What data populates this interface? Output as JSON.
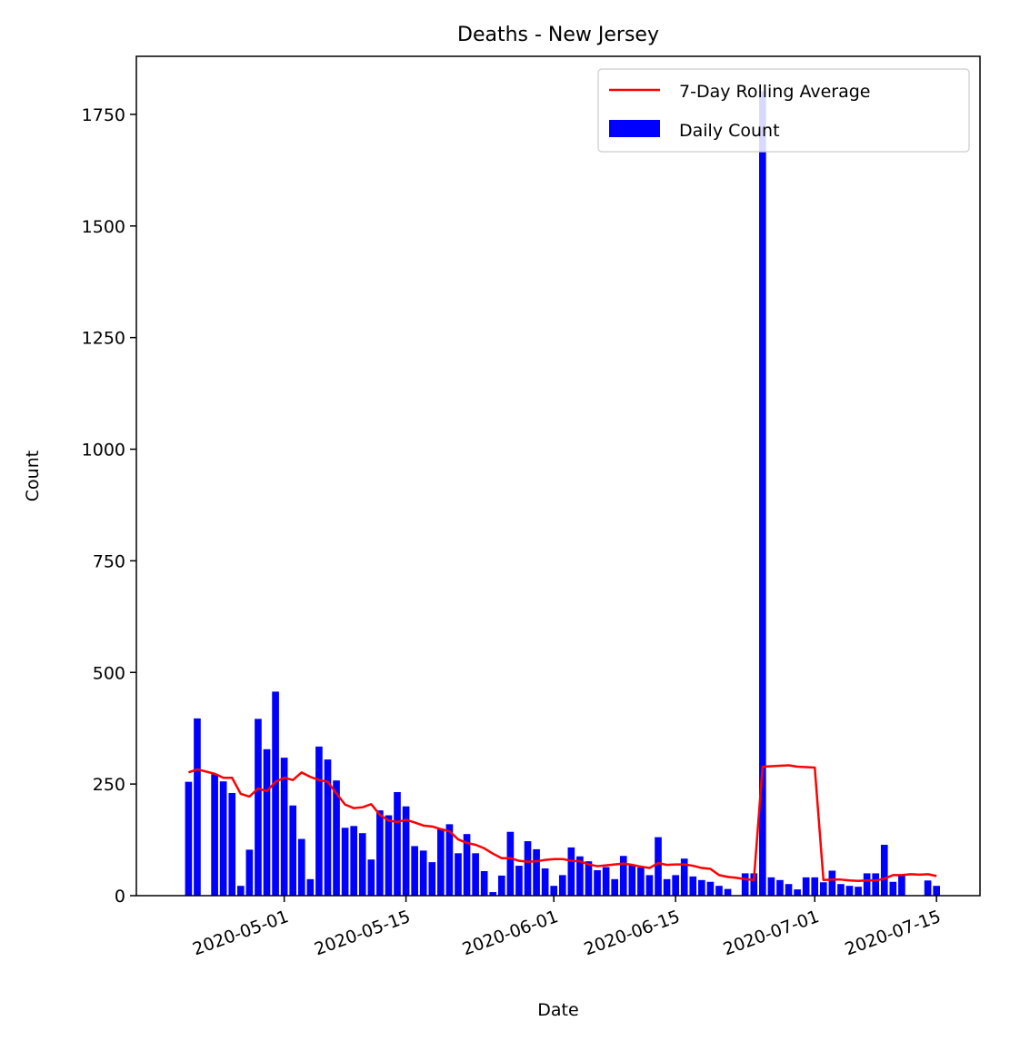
{
  "chart_data": {
    "type": "bar",
    "title": "Deaths - New Jersey",
    "xlabel": "Date",
    "ylabel": "Count",
    "ylim": [
      0,
      1880
    ],
    "xlim": [
      "2020-04-14",
      "2020-07-20"
    ],
    "yticks": [
      0,
      250,
      500,
      750,
      1000,
      1250,
      1500,
      1750
    ],
    "xticks": [
      "2020-05-01",
      "2020-05-15",
      "2020-06-01",
      "2020-06-15",
      "2020-07-01",
      "2020-07-15"
    ],
    "xtick_rotation_deg": 20,
    "legend_position": "top-right",
    "x": [
      "2020-04-20",
      "2020-04-21",
      "2020-04-22",
      "2020-04-23",
      "2020-04-24",
      "2020-04-25",
      "2020-04-26",
      "2020-04-27",
      "2020-04-28",
      "2020-04-29",
      "2020-04-30",
      "2020-05-01",
      "2020-05-02",
      "2020-05-03",
      "2020-05-04",
      "2020-05-05",
      "2020-05-06",
      "2020-05-07",
      "2020-05-08",
      "2020-05-09",
      "2020-05-10",
      "2020-05-11",
      "2020-05-12",
      "2020-05-13",
      "2020-05-14",
      "2020-05-15",
      "2020-05-16",
      "2020-05-17",
      "2020-05-18",
      "2020-05-19",
      "2020-05-20",
      "2020-05-21",
      "2020-05-22",
      "2020-05-23",
      "2020-05-24",
      "2020-05-25",
      "2020-05-26",
      "2020-05-27",
      "2020-05-28",
      "2020-05-29",
      "2020-05-30",
      "2020-05-31",
      "2020-06-01",
      "2020-06-02",
      "2020-06-03",
      "2020-06-04",
      "2020-06-05",
      "2020-06-06",
      "2020-06-07",
      "2020-06-08",
      "2020-06-09",
      "2020-06-10",
      "2020-06-11",
      "2020-06-12",
      "2020-06-13",
      "2020-06-14",
      "2020-06-15",
      "2020-06-16",
      "2020-06-17",
      "2020-06-18",
      "2020-06-19",
      "2020-06-20",
      "2020-06-21",
      "2020-06-22",
      "2020-06-23",
      "2020-06-24",
      "2020-06-25",
      "2020-06-26",
      "2020-06-27",
      "2020-06-28",
      "2020-06-29",
      "2020-06-30",
      "2020-07-01",
      "2020-07-02",
      "2020-07-03",
      "2020-07-04",
      "2020-07-05",
      "2020-07-06",
      "2020-07-07",
      "2020-07-08",
      "2020-07-09",
      "2020-07-10",
      "2020-07-11",
      "2020-07-12",
      "2020-07-13",
      "2020-07-14",
      "2020-07-15"
    ],
    "series": [
      {
        "name": "Daily Count",
        "type": "bar",
        "color": "#0000ff",
        "values": [
          255,
          397,
          null,
          272,
          256,
          230,
          22,
          103,
          396,
          328,
          457,
          309,
          202,
          127,
          37,
          334,
          305,
          258,
          152,
          156,
          140,
          81,
          191,
          180,
          232,
          200,
          111,
          101,
          75,
          150,
          160,
          95,
          138,
          95,
          55,
          8,
          45,
          143,
          67,
          122,
          104,
          61,
          22,
          46,
          108,
          88,
          77,
          57,
          64,
          37,
          89,
          69,
          63,
          46,
          131,
          37,
          46,
          83,
          43,
          35,
          31,
          22,
          15,
          null,
          50,
          50,
          1802,
          41,
          35,
          26,
          14,
          41,
          41,
          30,
          56,
          26,
          22,
          20,
          50,
          50,
          114,
          31,
          48,
          null,
          null,
          34,
          22
        ]
      },
      {
        "name": "7-Day Rolling Average",
        "type": "line",
        "color": "#ff0000",
        "values": [
          276,
          283,
          278,
          273,
          264,
          264,
          228,
          222,
          240,
          234,
          255,
          264,
          259,
          276,
          266,
          259,
          255,
          229,
          204,
          196,
          198,
          205,
          181,
          168,
          165,
          170,
          164,
          157,
          155,
          149,
          144,
          126,
          118,
          114,
          106,
          94,
          84,
          84,
          78,
          76,
          77,
          80,
          82,
          82,
          78,
          77,
          70,
          66,
          68,
          70,
          72,
          69,
          65,
          62,
          73,
          69,
          70,
          70,
          67,
          62,
          60,
          46,
          42,
          40,
          37,
          35,
          289,
          290,
          291,
          292,
          289,
          288,
          287,
          35,
          36,
          36,
          34,
          33,
          34,
          34,
          38,
          46,
          46,
          48,
          47,
          48,
          44
        ]
      }
    ]
  }
}
